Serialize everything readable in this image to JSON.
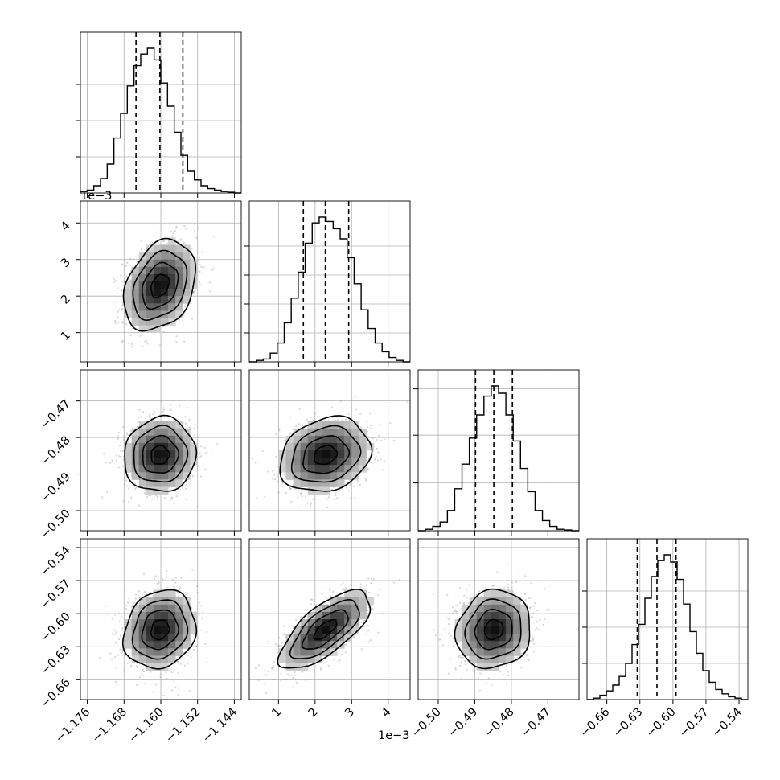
{
  "chart_data": {
    "type": "corner",
    "n_params": 4,
    "grid": true,
    "params": [
      {
        "range": [
          -1.1775,
          -1.1425
        ],
        "ticks": [
          -1.176,
          -1.168,
          -1.16,
          -1.152,
          -1.144
        ],
        "tick_labels": [
          "−1.176",
          "−1.168",
          "−1.160",
          "−1.152",
          "−1.144"
        ],
        "offset_label": "",
        "hist_yticks": [
          0.25,
          0.5,
          0.75
        ],
        "quantiles": [
          -1.1654,
          -1.1602,
          -1.1552
        ],
        "hist_y": [
          0.01,
          0.02,
          0.05,
          0.1,
          0.2,
          0.38,
          0.55,
          0.74,
          0.88,
          0.96,
          1.0,
          0.92,
          0.76,
          0.6,
          0.42,
          0.26,
          0.15,
          0.09,
          0.05,
          0.03,
          0.02,
          0.01,
          0.005,
          0.0
        ]
      },
      {
        "range": [
          0.2,
          4.6
        ],
        "ticks": [
          1,
          2,
          3,
          4
        ],
        "tick_labels": [
          "1",
          "2",
          "3",
          "4"
        ],
        "offset_label": "1e−3",
        "hist_yticks": [
          0.2,
          0.4,
          0.6,
          0.8
        ],
        "quantiles": [
          1.68,
          2.28,
          2.92
        ],
        "hist_y": [
          0.0,
          0.01,
          0.02,
          0.06,
          0.13,
          0.27,
          0.44,
          0.62,
          0.82,
          0.96,
          1.0,
          0.97,
          0.92,
          0.85,
          0.72,
          0.54,
          0.36,
          0.23,
          0.13,
          0.07,
          0.03,
          0.01,
          0.0
        ]
      },
      {
        "range": [
          -0.5055,
          -0.4615
        ],
        "ticks": [
          -0.5,
          -0.49,
          -0.48,
          -0.47
        ],
        "tick_labels": [
          "−0.50",
          "−0.49",
          "−0.48",
          "−0.47"
        ],
        "offset_label": "",
        "hist_yticks": [
          0.33,
          0.66,
          0.98
        ],
        "quantiles": [
          -0.4898,
          -0.4848,
          -0.4797
        ],
        "hist_y": [
          0.0,
          0.01,
          0.03,
          0.06,
          0.14,
          0.29,
          0.46,
          0.64,
          0.8,
          0.93,
          1.0,
          0.95,
          0.8,
          0.62,
          0.43,
          0.27,
          0.14,
          0.07,
          0.03,
          0.01,
          0.005,
          0.0
        ]
      },
      {
        "range": [
          -0.678,
          -0.532
        ],
        "ticks": [
          -0.66,
          -0.63,
          -0.6,
          -0.57,
          -0.54
        ],
        "tick_labels": [
          "−0.66",
          "−0.63",
          "−0.60",
          "−0.57",
          "−0.54"
        ],
        "offset_label": "",
        "hist_yticks": [
          0.25,
          0.5,
          0.75
        ],
        "quantiles": [
          -0.6324,
          -0.6145,
          -0.5972
        ],
        "hist_y": [
          0.0,
          0.01,
          0.03,
          0.06,
          0.1,
          0.16,
          0.25,
          0.38,
          0.52,
          0.7,
          0.85,
          0.96,
          1.0,
          0.95,
          0.83,
          0.66,
          0.47,
          0.32,
          0.2,
          0.12,
          0.07,
          0.04,
          0.02,
          0.01,
          0.0
        ]
      }
    ],
    "pairs": [
      {
        "row": 1,
        "col": 0,
        "mean": [
          -1.1602,
          2.28
        ],
        "sd": [
          0.0039,
          0.62
        ],
        "rho": 0.3
      },
      {
        "row": 2,
        "col": 0,
        "mean": [
          -1.1602,
          -0.4848
        ],
        "sd": [
          0.0039,
          0.0051
        ],
        "rho": 0.05
      },
      {
        "row": 2,
        "col": 1,
        "mean": [
          2.28,
          -0.4848
        ],
        "sd": [
          0.62,
          0.0051
        ],
        "rho": 0.2
      },
      {
        "row": 3,
        "col": 0,
        "mean": [
          -1.1602,
          -0.6145
        ],
        "sd": [
          0.0039,
          0.0178
        ],
        "rho": 0.15
      },
      {
        "row": 3,
        "col": 1,
        "mean": [
          2.28,
          -0.6145
        ],
        "sd": [
          0.62,
          0.0178
        ],
        "rho": 0.7
      },
      {
        "row": 3,
        "col": 2,
        "mean": [
          -0.4848,
          -0.6145
        ],
        "sd": [
          0.0051,
          0.0178
        ],
        "rho": 0.1
      }
    ]
  }
}
